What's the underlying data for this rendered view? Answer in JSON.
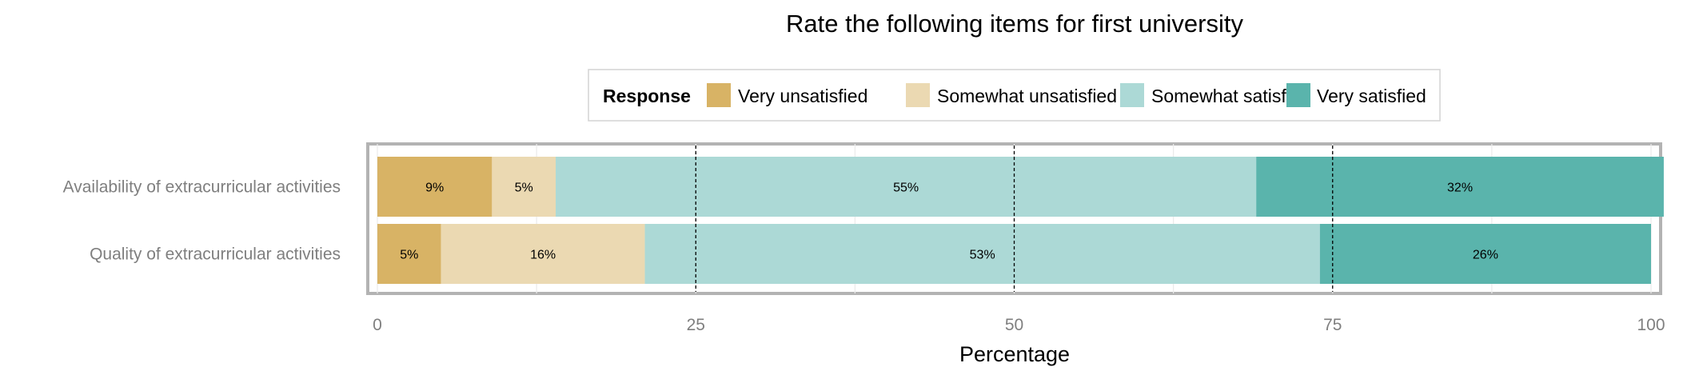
{
  "chart_data": {
    "type": "bar",
    "orientation": "horizontal",
    "stacked": true,
    "title": "Rate the following items for first university",
    "xlabel": "Percentage",
    "ylabel": "",
    "xlim": [
      0,
      100
    ],
    "xticks": [
      0,
      25,
      50,
      75,
      100
    ],
    "grid": true,
    "legend_title": "Response",
    "legend_position": "top",
    "categories": [
      "Availability of extracurricular activities",
      "Quality of extracurricular activities"
    ],
    "series": [
      {
        "name": "Very unsatisfied",
        "color": "#d8b365",
        "values": [
          9,
          5
        ],
        "labels": [
          "9%",
          "5%"
        ]
      },
      {
        "name": "Somewhat unsatisfied",
        "color": "#ebd9b2",
        "values": [
          5,
          16
        ],
        "labels": [
          "5%",
          "16%"
        ]
      },
      {
        "name": "Somewhat satisfied",
        "color": "#acd9d6",
        "values": [
          55,
          53
        ],
        "labels": [
          "55%",
          "53%"
        ]
      },
      {
        "name": "Very satisfied",
        "color": "#5ab4ac",
        "values": [
          32,
          26
        ],
        "labels": [
          "32%",
          "26%"
        ]
      }
    ],
    "reference_lines": [
      25,
      50,
      75
    ]
  }
}
